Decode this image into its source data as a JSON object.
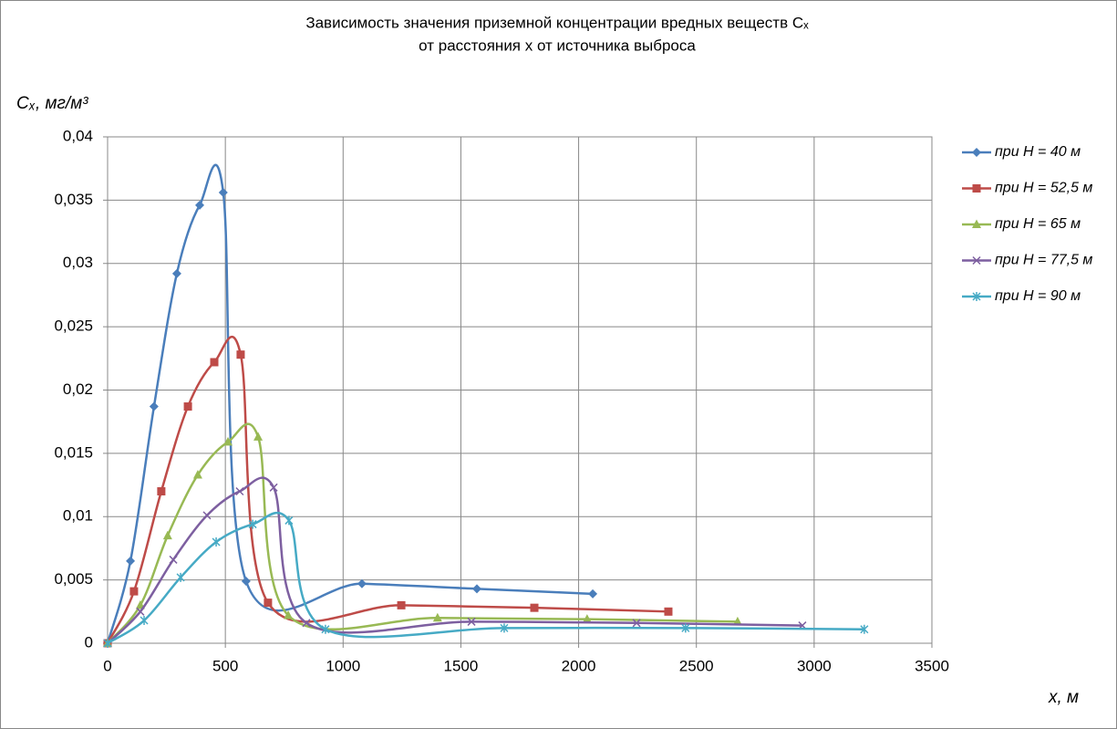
{
  "chart_data": {
    "type": "line",
    "title": [
      "Зависимость значения приземной концентрации вредных веществ Cₓ",
      "от расстояния x от источника выброса"
    ],
    "y_label": "Cₓ, мг/м³",
    "x_label": "x, м",
    "xlim": [
      0,
      3500
    ],
    "xticks": [
      0,
      500,
      1000,
      1500,
      2000,
      2500,
      3000,
      3500
    ],
    "ylim": [
      0,
      0.04
    ],
    "yticks": [
      0,
      {
        "value": 0.005,
        "label": "0,005"
      },
      {
        "value": 0.01,
        "label": "0,01"
      },
      {
        "value": 0.015,
        "label": "0,015"
      },
      {
        "value": 0.02,
        "label": "0,02"
      },
      {
        "value": 0.025,
        "label": "0,025"
      },
      {
        "value": 0.03,
        "label": "0,03"
      },
      {
        "value": 0.035,
        "label": "0,035"
      },
      {
        "value": 0.04,
        "label": "0,04"
      }
    ],
    "grid": true,
    "legend": "right",
    "series": [
      {
        "name": "при H = 40 м",
        "color": "#4a7ebb",
        "marker": "diamond",
        "x": [
          0,
          97,
          197,
          294,
          391,
          491,
          588,
          1080,
          1568,
          2060
        ],
        "values": [
          0,
          0.0065,
          0.0187,
          0.0292,
          0.0346,
          0.0356,
          0.0049,
          0.0047,
          0.0043,
          0.0039
        ]
      },
      {
        "name": "при H = 52,5 м",
        "color": "#be4b48",
        "marker": "square",
        "x": [
          0,
          112,
          228,
          341,
          453,
          565,
          681,
          1247,
          1812,
          2381
        ],
        "values": [
          0,
          0.0041,
          0.012,
          0.0187,
          0.0222,
          0.0228,
          0.0032,
          0.003,
          0.0028,
          0.0025
        ]
      },
      {
        "name": "при H = 65 м",
        "color": "#98b954",
        "marker": "triangle",
        "x": [
          0,
          139,
          255,
          383,
          511,
          639,
          767,
          1401,
          2036,
          2675
        ],
        "values": [
          0,
          0.003,
          0.0085,
          0.0133,
          0.0159,
          0.0163,
          0.0022,
          0.002,
          0.0019,
          0.0017
        ]
      },
      {
        "name": "при H = 77,5 м",
        "color": "#7d5fa0",
        "marker": "x",
        "x": [
          0,
          139,
          279,
          422,
          561,
          705,
          844,
          1545,
          2246,
          2950
        ],
        "values": [
          0,
          0.0025,
          0.0066,
          0.0101,
          0.012,
          0.0123,
          0.0016,
          0.0017,
          0.0016,
          0.0014
        ]
      },
      {
        "name": "при H = 90 м",
        "color": "#46aac5",
        "marker": "star",
        "x": [
          0,
          155,
          310,
          461,
          616,
          770,
          925,
          1684,
          2454,
          3213
        ],
        "values": [
          0,
          0.0018,
          0.0052,
          0.008,
          0.0094,
          0.0097,
          0.0011,
          0.0012,
          0.0012,
          0.0011
        ]
      }
    ]
  }
}
